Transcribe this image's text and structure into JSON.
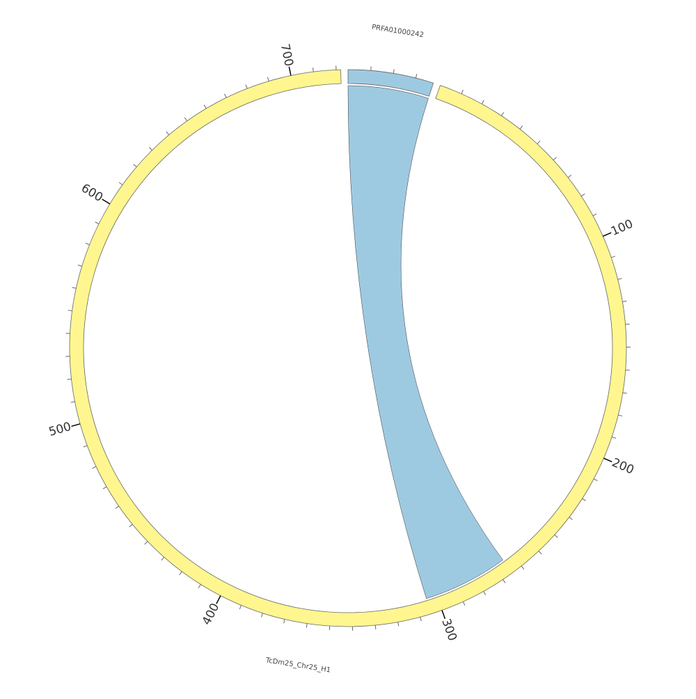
{
  "chart_data": {
    "type": "chord",
    "sectors": [
      {
        "name": "PRFA01000242",
        "color": "#9ecae1",
        "xlim": [
          0,
          38
        ],
        "xticks": [],
        "minor_ticks": [
          10,
          20,
          30
        ]
      },
      {
        "name": "TcDm25_Chr25_H1",
        "color": "#fff68f",
        "xlim": [
          0,
          722
        ],
        "xticks": [
          100,
          200,
          300,
          400,
          500,
          600,
          700
        ],
        "minor_ticks": [
          10,
          20,
          30,
          40,
          50,
          60,
          70,
          80,
          90,
          110,
          120,
          130,
          140,
          150,
          160,
          170,
          180,
          190,
          210,
          220,
          230,
          240,
          250,
          260,
          270,
          280,
          290,
          310,
          320,
          330,
          340,
          350,
          360,
          370,
          380,
          390,
          410,
          420,
          430,
          440,
          450,
          460,
          470,
          480,
          490,
          510,
          520,
          530,
          540,
          550,
          560,
          570,
          580,
          590,
          610,
          620,
          630,
          640,
          650,
          660,
          670,
          680,
          690,
          710,
          720
        ]
      }
    ],
    "links": [
      {
        "source": 0,
        "source_range": [
          0,
          38
        ],
        "target": 1,
        "target_range": [
          265,
          305
        ],
        "color": "#9ecae1"
      }
    ]
  }
}
